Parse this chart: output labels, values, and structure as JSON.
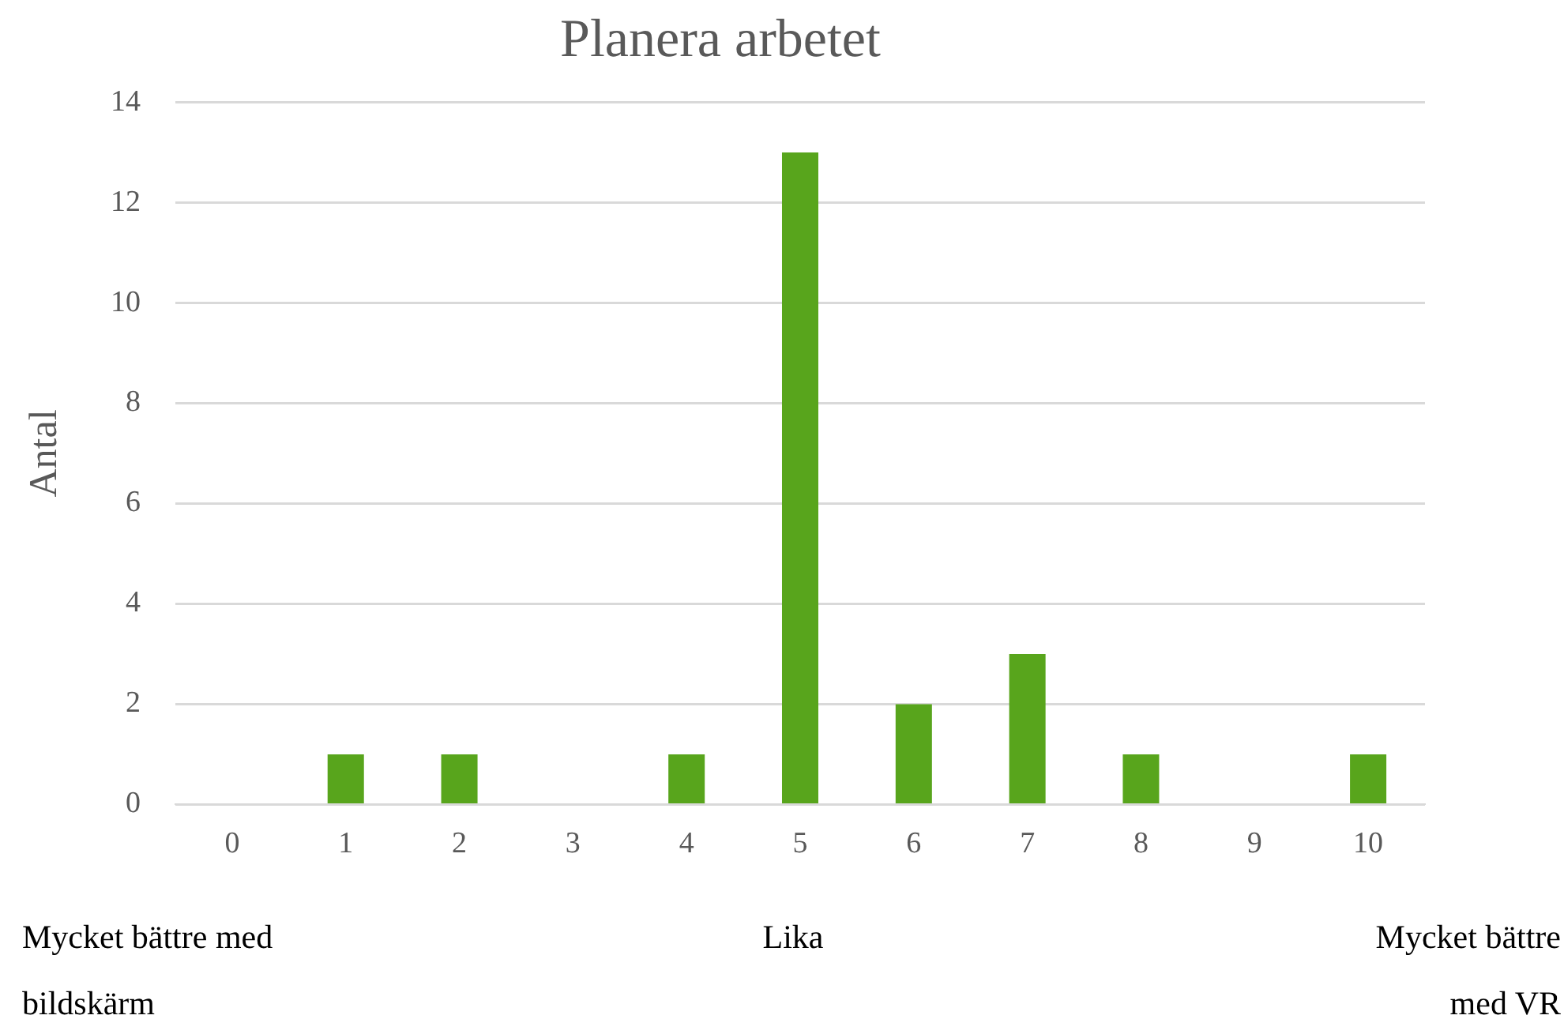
{
  "chart_data": {
    "type": "bar",
    "title": "Planera arbetet",
    "ylabel": "Antal",
    "categories": [
      "0",
      "1",
      "2",
      "3",
      "4",
      "5",
      "6",
      "7",
      "8",
      "9",
      "10"
    ],
    "values": [
      0,
      1,
      1,
      0,
      1,
      13,
      2,
      3,
      1,
      0,
      1
    ],
    "color": "#58a51c",
    "ylim": [
      0,
      14
    ],
    "yticks": [
      0,
      2,
      4,
      6,
      8,
      10,
      12,
      14
    ],
    "grid": "y",
    "legend": false,
    "annotations": [
      "Mycket bättre med bildskärm",
      "Lika",
      "Mycket bättre med VR"
    ]
  }
}
